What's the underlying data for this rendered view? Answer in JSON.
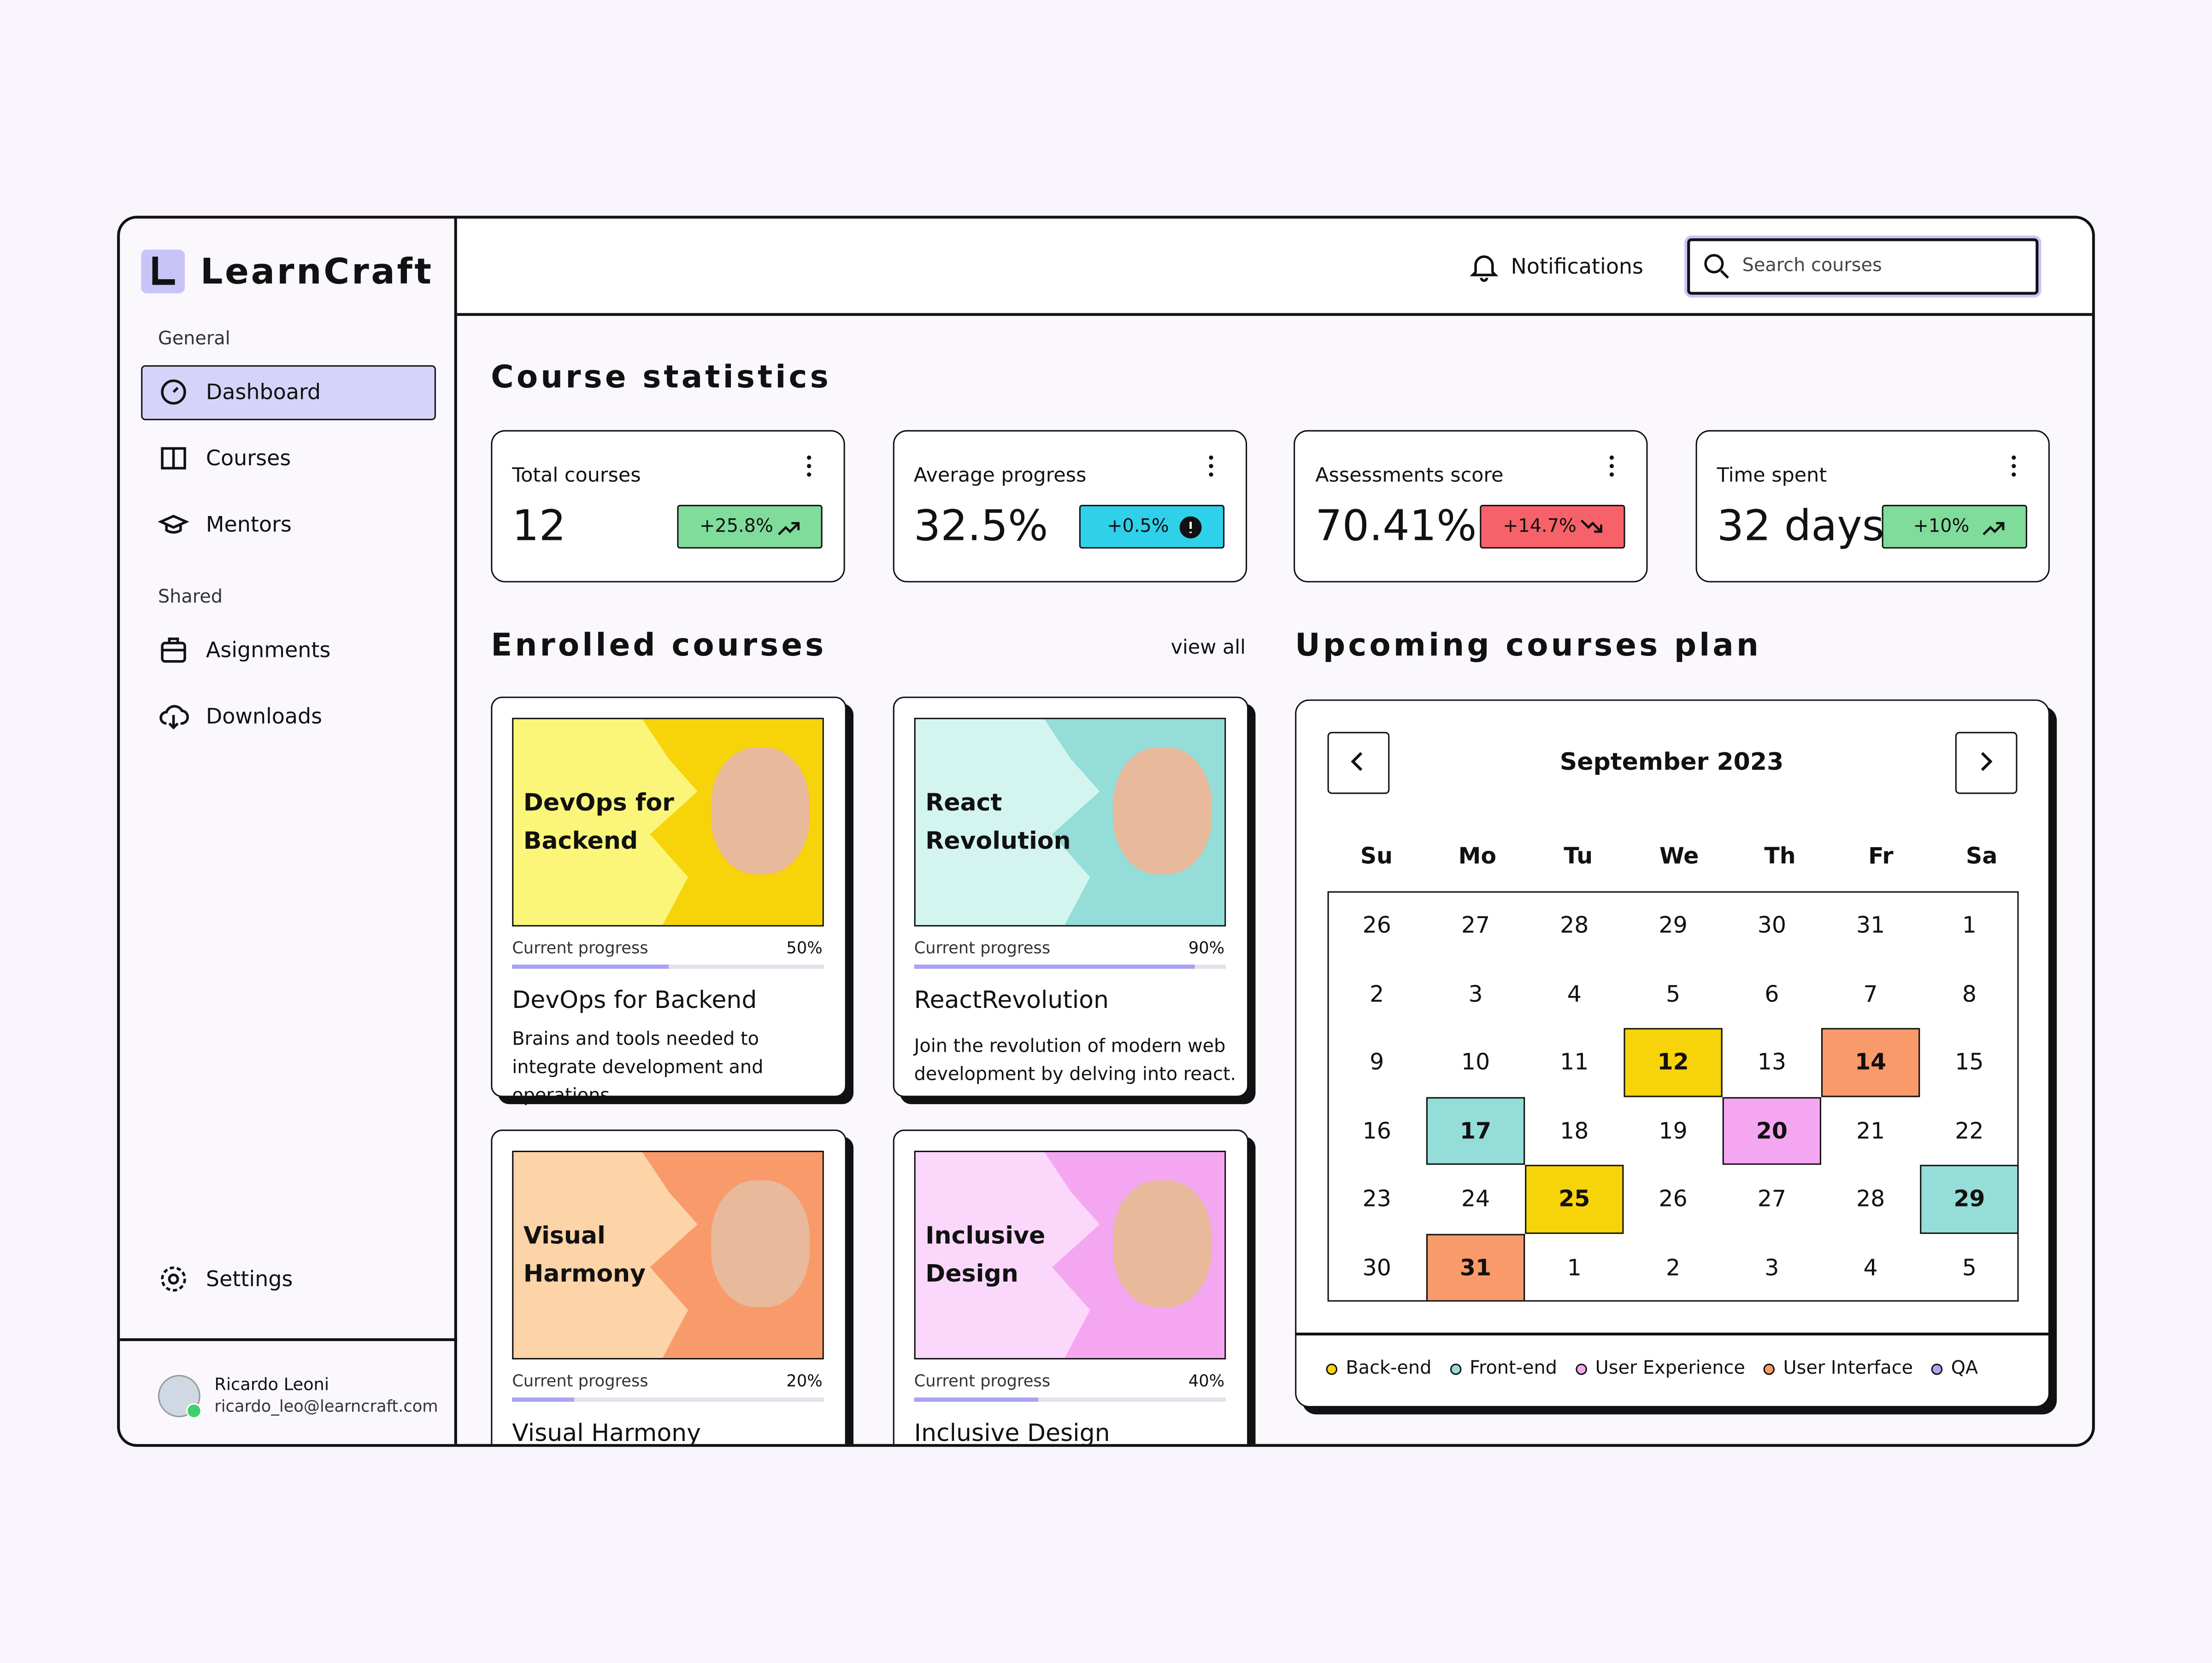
{
  "sidebar": {
    "brand": "LearnCraft",
    "active": "Dashboard",
    "sections": [
      {
        "title": "General",
        "items": [
          "Dashboard",
          "Courses",
          "Mentors"
        ]
      },
      {
        "title": "Shared",
        "items": [
          "Asignments",
          "Downloads"
        ]
      }
    ],
    "settings": "Settings",
    "user": {
      "name": "Ricardo Leoni",
      "email": "ricardo_leo@learncraft.com"
    }
  },
  "header": {
    "notifications": "Notifications",
    "search_placeholder": "Search courses"
  },
  "statistics": {
    "title": "Course statistics",
    "cards": [
      {
        "label": "Total courses",
        "value": "12",
        "change": "+25.8%",
        "trend": "up",
        "color": "#7fdc9a"
      },
      {
        "label": "Average progress",
        "value": "32.5%",
        "change": "+0.5%",
        "trend": "flat",
        "color": "#2fd0ea"
      },
      {
        "label": "Assessments score",
        "value": "70.41%",
        "change": "+14.7%",
        "trend": "down",
        "color": "#f7616a"
      },
      {
        "label": "Time spent",
        "value": "32 days",
        "change": "+10%",
        "trend": "up",
        "color": "#7fdc9a"
      }
    ]
  },
  "enrolled": {
    "title": "Enrolled courses",
    "view_all": "view all",
    "progress_label": "Current progress",
    "courses": [
      {
        "cover_title": "DevOps for Backend",
        "cover_color": "#fbf67a",
        "accent_color": "#f7d30a",
        "progress": 50,
        "progress_text": "50%",
        "name": "DevOps for Backend",
        "description": "Brains and tools needed to integrate development and operations."
      },
      {
        "cover_title": "React Revolution",
        "cover_color": "#d4f5ef",
        "accent_color": "#94ddd8",
        "progress": 90,
        "progress_text": "90%",
        "name": "ReactRevolution",
        "description": "Join the revolution of modern web development by delving into react."
      },
      {
        "cover_title": "Visual Harmony",
        "cover_color": "#fdd3a8",
        "accent_color": "#f99a6a",
        "progress": 20,
        "progress_text": "20%",
        "name": "Visual Harmony"
      },
      {
        "cover_title": "Inclusive Design",
        "cover_color": "#fbd8fb",
        "accent_color": "#f4a7f0",
        "progress": 40,
        "progress_text": "40%",
        "name": "Inclusive Design"
      }
    ]
  },
  "calendar": {
    "title": "Upcoming courses plan",
    "month": "September 2023",
    "weekdays": [
      "Su",
      "Mo",
      "Tu",
      "We",
      "Th",
      "Fr",
      "Sa"
    ],
    "weeks": [
      [
        {
          "day": "26"
        },
        {
          "day": "27"
        },
        {
          "day": "28"
        },
        {
          "day": "29"
        },
        {
          "day": "30"
        },
        {
          "day": "31"
        },
        {
          "day": "1"
        }
      ],
      [
        {
          "day": "2"
        },
        {
          "day": "3"
        },
        {
          "day": "4"
        },
        {
          "day": "5"
        },
        {
          "day": "6"
        },
        {
          "day": "7"
        },
        {
          "day": "8"
        }
      ],
      [
        {
          "day": "9"
        },
        {
          "day": "10"
        },
        {
          "day": "11"
        },
        {
          "day": "12",
          "category": "Back-end"
        },
        {
          "day": "13"
        },
        {
          "day": "14",
          "category": "User Interface"
        },
        {
          "day": "15"
        }
      ],
      [
        {
          "day": "16"
        },
        {
          "day": "17",
          "category": "Front-end"
        },
        {
          "day": "18"
        },
        {
          "day": "19"
        },
        {
          "day": "20",
          "category": "User Experience"
        },
        {
          "day": "21"
        },
        {
          "day": "22"
        }
      ],
      [
        {
          "day": "23"
        },
        {
          "day": "24"
        },
        {
          "day": "25",
          "category": "Back-end"
        },
        {
          "day": "26"
        },
        {
          "day": "27"
        },
        {
          "day": "28"
        },
        {
          "day": "29",
          "category": "Front-end"
        }
      ],
      [
        {
          "day": "30"
        },
        {
          "day": "31",
          "category": "User Interface"
        },
        {
          "day": "1"
        },
        {
          "day": "2"
        },
        {
          "day": "3"
        },
        {
          "day": "4"
        },
        {
          "day": "5"
        }
      ]
    ],
    "legend": [
      {
        "name": "Back-end",
        "color": "#f7d30a"
      },
      {
        "name": "Front-end",
        "color": "#94ddd8"
      },
      {
        "name": "User Experience",
        "color": "#f4a7f0"
      },
      {
        "name": "User Interface",
        "color": "#f99a6a"
      },
      {
        "name": "QA",
        "color": "#b0a4f2"
      }
    ]
  }
}
